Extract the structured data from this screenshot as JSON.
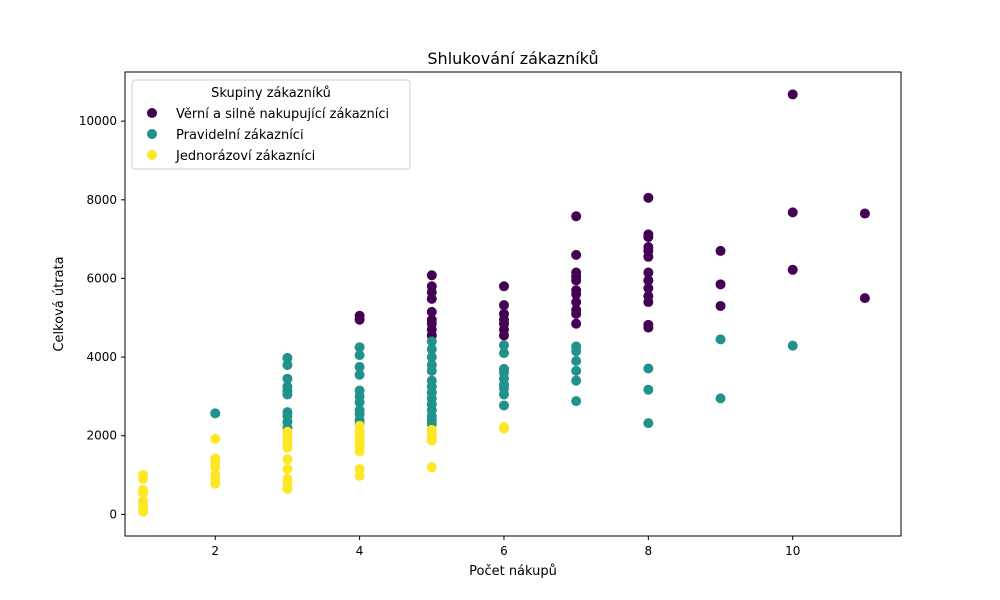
{
  "chart_data": {
    "type": "scatter",
    "title": "Shlukování zákazníků",
    "xlabel": "Počet nákupů",
    "ylabel": "Celková útrata",
    "xlim": [
      0.75,
      11.5
    ],
    "ylim": [
      -550,
      11250
    ],
    "xticks": [
      2,
      4,
      6,
      8,
      10
    ],
    "yticks": [
      0,
      2000,
      4000,
      6000,
      8000,
      10000
    ],
    "grid": false,
    "legend": {
      "title": "Skupiny zákazníků",
      "placement": "top-left"
    },
    "series": [
      {
        "name": "Věrní a silně nakupující zákazníci",
        "color": "#440154",
        "points": [
          [
            4,
            5050
          ],
          [
            4,
            4950
          ],
          [
            5,
            6080
          ],
          [
            5,
            5800
          ],
          [
            5,
            5650
          ],
          [
            5,
            5480
          ],
          [
            5,
            5150
          ],
          [
            5,
            4950
          ],
          [
            5,
            4850
          ],
          [
            5,
            4700
          ],
          [
            5,
            4550
          ],
          [
            6,
            5800
          ],
          [
            6,
            5320
          ],
          [
            6,
            5100
          ],
          [
            6,
            4950
          ],
          [
            6,
            4850
          ],
          [
            6,
            4700
          ],
          [
            6,
            4550
          ],
          [
            7,
            7580
          ],
          [
            7,
            6600
          ],
          [
            7,
            6150
          ],
          [
            7,
            6050
          ],
          [
            7,
            5950
          ],
          [
            7,
            5700
          ],
          [
            7,
            5600
          ],
          [
            7,
            5400
          ],
          [
            7,
            5200
          ],
          [
            7,
            5100
          ],
          [
            7,
            4850
          ],
          [
            8,
            8050
          ],
          [
            8,
            7120
          ],
          [
            8,
            7050
          ],
          [
            8,
            6800
          ],
          [
            8,
            6700
          ],
          [
            8,
            6550
          ],
          [
            8,
            6150
          ],
          [
            8,
            5950
          ],
          [
            8,
            5750
          ],
          [
            8,
            5550
          ],
          [
            8,
            5400
          ],
          [
            8,
            4820
          ],
          [
            8,
            4750
          ],
          [
            9,
            6700
          ],
          [
            9,
            5850
          ],
          [
            9,
            5300
          ],
          [
            10,
            10680
          ],
          [
            10,
            7680
          ],
          [
            10,
            6220
          ],
          [
            11,
            7650
          ],
          [
            11,
            5500
          ]
        ]
      },
      {
        "name": "Pravidelní zákazníci",
        "color": "#21918c",
        "points": [
          [
            2,
            2570
          ],
          [
            3,
            3980
          ],
          [
            3,
            3800
          ],
          [
            3,
            3450
          ],
          [
            3,
            3250
          ],
          [
            3,
            3150
          ],
          [
            3,
            3050
          ],
          [
            3,
            2600
          ],
          [
            3,
            2500
          ],
          [
            3,
            2350
          ],
          [
            3,
            2200
          ],
          [
            4,
            4250
          ],
          [
            4,
            4050
          ],
          [
            4,
            3750
          ],
          [
            4,
            3550
          ],
          [
            4,
            3150
          ],
          [
            4,
            3000
          ],
          [
            4,
            2850
          ],
          [
            4,
            2650
          ],
          [
            4,
            2550
          ],
          [
            4,
            2400
          ],
          [
            4,
            2300
          ],
          [
            5,
            4400
          ],
          [
            5,
            4200
          ],
          [
            5,
            4000
          ],
          [
            5,
            3800
          ],
          [
            5,
            3650
          ],
          [
            5,
            3400
          ],
          [
            5,
            3250
          ],
          [
            5,
            3100
          ],
          [
            5,
            2950
          ],
          [
            5,
            2800
          ],
          [
            5,
            2650
          ],
          [
            5,
            2500
          ],
          [
            5,
            2400
          ],
          [
            5,
            2300
          ],
          [
            6,
            4300
          ],
          [
            6,
            4100
          ],
          [
            6,
            3700
          ],
          [
            6,
            3600
          ],
          [
            6,
            3450
          ],
          [
            6,
            3300
          ],
          [
            6,
            3200
          ],
          [
            6,
            3050
          ],
          [
            6,
            2770
          ],
          [
            7,
            4270
          ],
          [
            7,
            4150
          ],
          [
            7,
            3900
          ],
          [
            7,
            3650
          ],
          [
            7,
            3400
          ],
          [
            7,
            2880
          ],
          [
            8,
            3710
          ],
          [
            8,
            3170
          ],
          [
            8,
            2320
          ],
          [
            9,
            4450
          ],
          [
            9,
            2950
          ],
          [
            10,
            4290
          ]
        ]
      },
      {
        "name": "Jednorázoví zákazníci",
        "color": "#fde725",
        "points": [
          [
            1,
            1000
          ],
          [
            1,
            900
          ],
          [
            1,
            620
          ],
          [
            1,
            550
          ],
          [
            1,
            350
          ],
          [
            1,
            300
          ],
          [
            1,
            200
          ],
          [
            1,
            130
          ],
          [
            1,
            70
          ],
          [
            2,
            1920
          ],
          [
            2,
            1420
          ],
          [
            2,
            1300
          ],
          [
            2,
            1200
          ],
          [
            2,
            1000
          ],
          [
            2,
            900
          ],
          [
            2,
            780
          ],
          [
            3,
            2100
          ],
          [
            3,
            2000
          ],
          [
            3,
            1900
          ],
          [
            3,
            1800
          ],
          [
            3,
            1700
          ],
          [
            3,
            1400
          ],
          [
            3,
            1150
          ],
          [
            3,
            900
          ],
          [
            3,
            800
          ],
          [
            3,
            650
          ],
          [
            4,
            2250
          ],
          [
            4,
            2100
          ],
          [
            4,
            2000
          ],
          [
            4,
            1900
          ],
          [
            4,
            1800
          ],
          [
            4,
            1700
          ],
          [
            4,
            1600
          ],
          [
            4,
            1150
          ],
          [
            4,
            980
          ],
          [
            5,
            2150
          ],
          [
            5,
            2050
          ],
          [
            5,
            1950
          ],
          [
            5,
            1880
          ],
          [
            5,
            1200
          ],
          [
            6,
            2220
          ],
          [
            6,
            2180
          ]
        ]
      }
    ]
  }
}
